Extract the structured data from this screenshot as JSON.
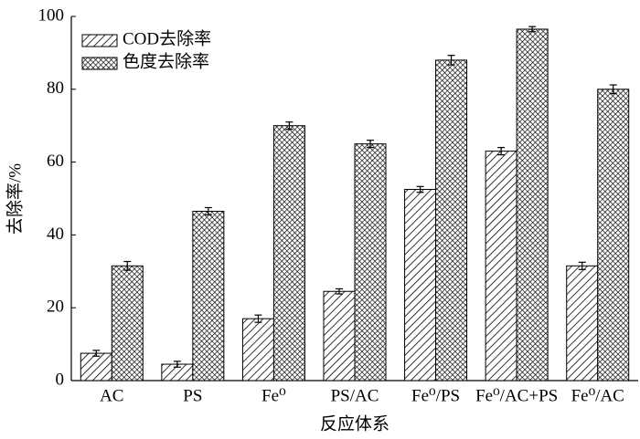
{
  "chart_data": {
    "type": "bar",
    "x_label": "反应体系",
    "y_label": "去除率/%",
    "categories": [
      "AC",
      "PS",
      "Fe⁰",
      "PS/AC",
      "Fe⁰/PS",
      "Fe⁰/AC+PS",
      "Fe⁰/AC"
    ],
    "series": [
      {
        "name": "COD去除率",
        "color": "#000000",
        "pattern": "hatch",
        "values": [
          7.5,
          4.5,
          17,
          24.5,
          52.5,
          63,
          31.5
        ],
        "errors": [
          0.8,
          0.8,
          1,
          0.7,
          0.8,
          1,
          1
        ]
      },
      {
        "name": "色度去除率",
        "color": "#000000",
        "pattern": "crosshatch",
        "values": [
          31.5,
          46.5,
          70,
          65,
          88,
          96.5,
          80
        ],
        "errors": [
          1.2,
          1,
          1,
          1,
          1.3,
          0.7,
          1.2
        ]
      }
    ],
    "ylim": [
      0,
      100
    ],
    "yticks": [
      0,
      20,
      40,
      60,
      80,
      100
    ],
    "grid": false,
    "legend": "upper left"
  }
}
